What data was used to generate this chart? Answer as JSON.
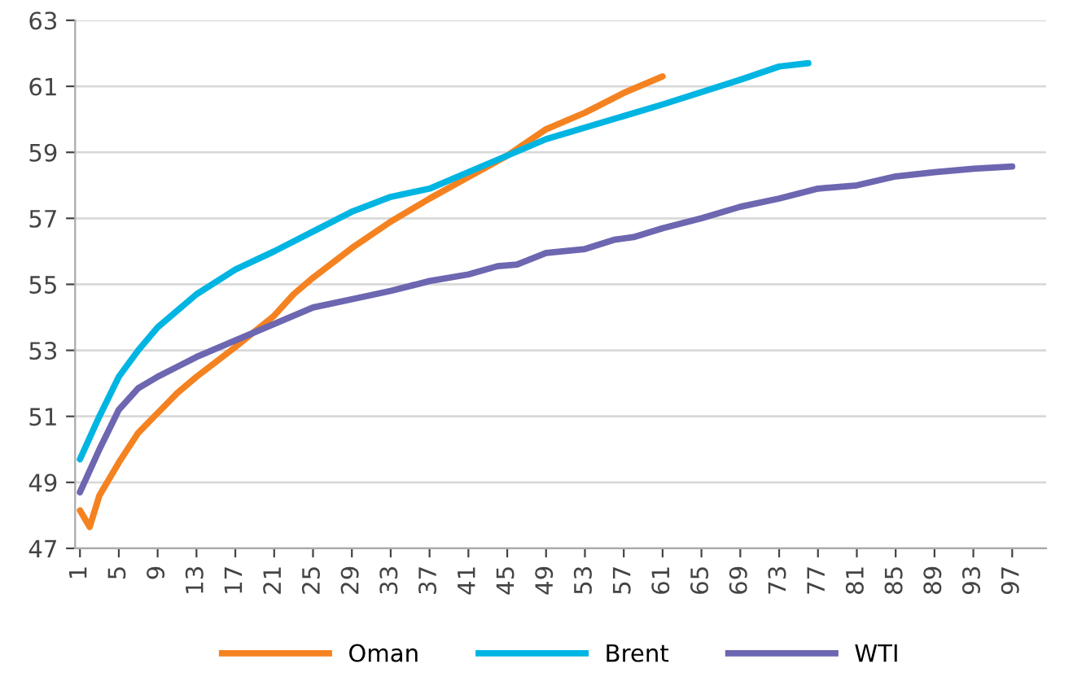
{
  "chart_data": {
    "type": "line",
    "xlim": [
      0.5,
      100.5
    ],
    "ylim": [
      47,
      63
    ],
    "xticks": [
      1,
      5,
      9,
      13,
      17,
      21,
      25,
      29,
      33,
      37,
      41,
      45,
      49,
      53,
      57,
      61,
      65,
      69,
      73,
      77,
      81,
      85,
      89,
      93,
      97
    ],
    "yticks": [
      47,
      49,
      51,
      53,
      55,
      57,
      59,
      61,
      63
    ],
    "grid": "y",
    "legend": "bottom",
    "marker": "none",
    "line_style": "solid",
    "series": [
      {
        "name": "Oman",
        "color": "#f58220",
        "x": [
          1,
          2,
          3,
          5,
          7,
          9,
          11,
          13,
          17,
          21,
          23,
          25,
          29,
          33,
          37,
          41,
          45,
          49,
          53,
          57,
          61
        ],
        "values": [
          48.15,
          47.65,
          48.6,
          49.6,
          50.5,
          51.1,
          51.7,
          52.2,
          53.1,
          54.05,
          54.7,
          55.2,
          56.1,
          56.9,
          57.6,
          58.25,
          58.9,
          59.7,
          60.2,
          60.8,
          61.3
        ]
      },
      {
        "name": "Brent",
        "color": "#00b5e2",
        "x": [
          1,
          3,
          5,
          7,
          9,
          13,
          17,
          21,
          25,
          29,
          33,
          37,
          41,
          45,
          49,
          61,
          69,
          73,
          76
        ],
        "values": [
          49.7,
          51.0,
          52.2,
          53.0,
          53.7,
          54.7,
          55.45,
          56.0,
          56.6,
          57.2,
          57.65,
          57.9,
          58.4,
          58.9,
          59.4,
          60.45,
          61.2,
          61.6,
          61.7
        ]
      },
      {
        "name": "WTI",
        "color": "#6d66b0",
        "x": [
          1,
          3,
          5,
          7,
          9,
          11,
          13,
          17,
          21,
          25,
          29,
          33,
          37,
          41,
          44,
          46,
          49,
          53,
          56,
          58,
          61,
          65,
          69,
          73,
          77,
          81,
          85,
          89,
          93,
          97
        ],
        "values": [
          48.7,
          50.0,
          51.2,
          51.85,
          52.2,
          52.5,
          52.8,
          53.3,
          53.8,
          54.3,
          54.55,
          54.8,
          55.1,
          55.3,
          55.55,
          55.6,
          55.95,
          56.07,
          56.35,
          56.43,
          56.7,
          57.0,
          57.35,
          57.6,
          57.9,
          58.0,
          58.27,
          58.4,
          58.5,
          58.57
        ]
      }
    ]
  }
}
